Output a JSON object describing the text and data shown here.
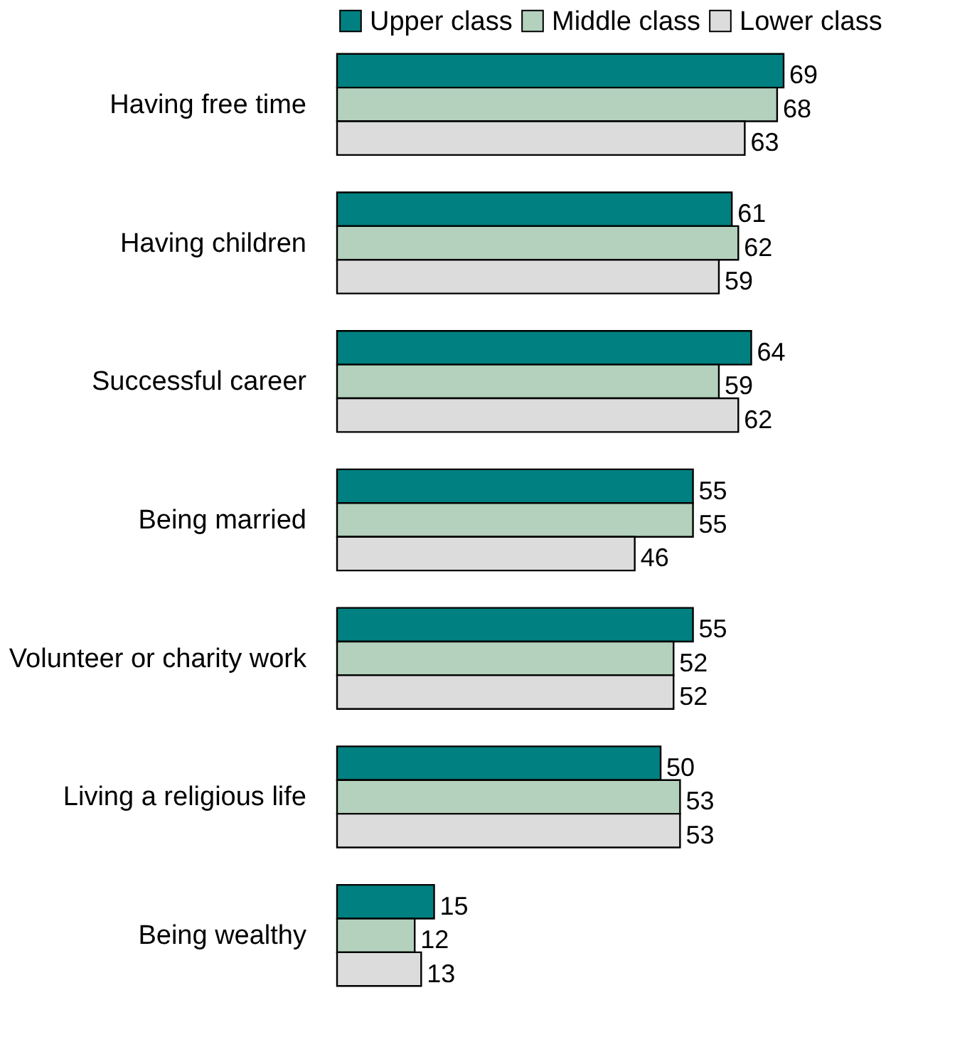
{
  "chart_data": {
    "type": "bar",
    "orientation": "horizontal",
    "categories": [
      "Having free time",
      "Having children",
      "Successful career",
      "Being married",
      "Volunteer or charity work",
      "Living a religious life",
      "Being wealthy"
    ],
    "series": [
      {
        "name": "Upper class",
        "color": "#008080",
        "values": [
          69,
          61,
          64,
          55,
          55,
          50,
          15
        ]
      },
      {
        "name": "Middle class",
        "color": "#b3d1bd",
        "values": [
          68,
          62,
          59,
          55,
          52,
          53,
          12
        ]
      },
      {
        "name": "Lower class",
        "color": "#dcdcdc",
        "values": [
          63,
          59,
          62,
          46,
          52,
          53,
          13
        ]
      }
    ],
    "data_labels": true,
    "legend": "top",
    "grid": false
  }
}
